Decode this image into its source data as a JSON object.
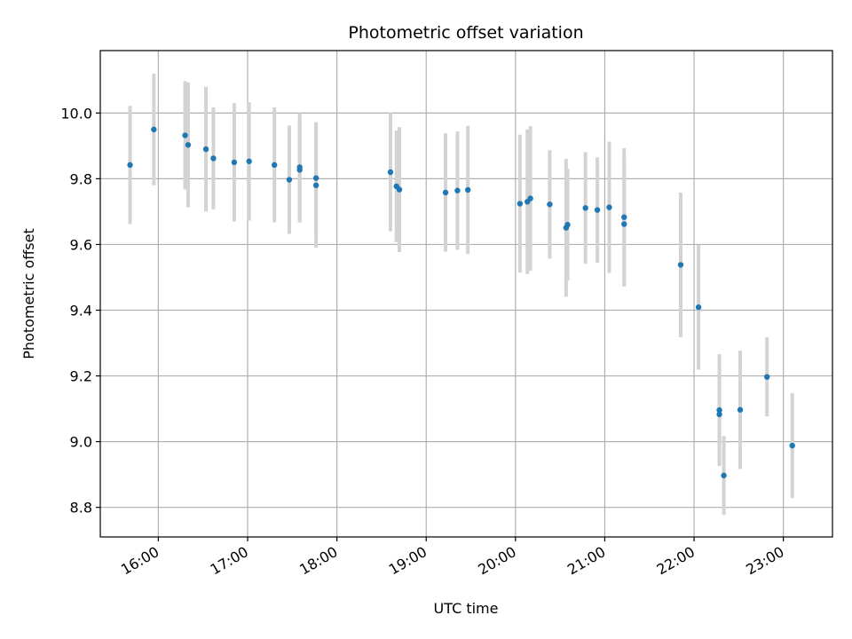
{
  "chart_data": {
    "type": "scatter",
    "title": "Photometric offset variation",
    "xlabel": "UTC time",
    "ylabel": "Photometric offset",
    "x_tick_labels": [
      "16:00",
      "17:00",
      "18:00",
      "19:00",
      "20:00",
      "21:00",
      "22:00",
      "23:00"
    ],
    "y_tick_labels": [
      "8.8",
      "9.0",
      "9.2",
      "9.4",
      "9.6",
      "9.8",
      "10.0"
    ],
    "y_ticks": [
      8.8,
      9.0,
      9.2,
      9.4,
      9.6,
      9.8,
      10.0
    ],
    "xlim": [
      "15:21",
      "23:33"
    ],
    "ylim": [
      8.71,
      10.19
    ],
    "grid": true,
    "colors": {
      "points": "#1f77b4",
      "error_bars": "#d3d3d3",
      "grid": "#b0b0b0",
      "axes": "#000000"
    },
    "series": [
      {
        "points": [
          {
            "x": "15:41",
            "y": 9.842,
            "err": 0.18
          },
          {
            "x": "15:57",
            "y": 9.95,
            "err": 0.17
          },
          {
            "x": "16:18",
            "y": 9.932,
            "err": 0.165
          },
          {
            "x": "16:20",
            "y": 9.903,
            "err": 0.19
          },
          {
            "x": "16:32",
            "y": 9.89,
            "err": 0.19
          },
          {
            "x": "16:37",
            "y": 9.862,
            "err": 0.155
          },
          {
            "x": "16:51",
            "y": 9.85,
            "err": 0.18
          },
          {
            "x": "17:01",
            "y": 9.853,
            "err": 0.18
          },
          {
            "x": "17:18",
            "y": 9.842,
            "err": 0.175
          },
          {
            "x": "17:28",
            "y": 9.797,
            "err": 0.165
          },
          {
            "x": "17:35",
            "y": 9.835,
            "err": 0.165
          },
          {
            "x": "17:35",
            "y": 9.827,
            "err": 0.16
          },
          {
            "x": "17:46",
            "y": 9.802,
            "err": 0.17
          },
          {
            "x": "17:46",
            "y": 9.78,
            "err": 0.19
          },
          {
            "x": "18:36",
            "y": 9.82,
            "err": 0.18
          },
          {
            "x": "18:40",
            "y": 9.777,
            "err": 0.17
          },
          {
            "x": "18:42",
            "y": 9.767,
            "err": 0.19
          },
          {
            "x": "19:13",
            "y": 9.758,
            "err": 0.18
          },
          {
            "x": "19:21",
            "y": 9.764,
            "err": 0.18
          },
          {
            "x": "19:28",
            "y": 9.766,
            "err": 0.195
          },
          {
            "x": "20:03",
            "y": 9.724,
            "err": 0.21
          },
          {
            "x": "20:08",
            "y": 9.73,
            "err": 0.22
          },
          {
            "x": "20:10",
            "y": 9.74,
            "err": 0.22
          },
          {
            "x": "20:23",
            "y": 9.722,
            "err": 0.165
          },
          {
            "x": "20:34",
            "y": 9.651,
            "err": 0.21
          },
          {
            "x": "20:35",
            "y": 9.66,
            "err": 0.17
          },
          {
            "x": "20:47",
            "y": 9.711,
            "err": 0.17
          },
          {
            "x": "20:55",
            "y": 9.705,
            "err": 0.16
          },
          {
            "x": "21:03",
            "y": 9.713,
            "err": 0.2
          },
          {
            "x": "21:13",
            "y": 9.683,
            "err": 0.21
          },
          {
            "x": "21:13",
            "y": 9.662,
            "err": 0.19
          },
          {
            "x": "21:51",
            "y": 9.538,
            "err": 0.22
          },
          {
            "x": "22:03",
            "y": 9.409,
            "err": 0.19
          },
          {
            "x": "22:17",
            "y": 9.096,
            "err": 0.17
          },
          {
            "x": "22:17",
            "y": 9.083,
            "err": 0.15
          },
          {
            "x": "22:20",
            "y": 8.897,
            "err": 0.12
          },
          {
            "x": "22:31",
            "y": 9.097,
            "err": 0.18
          },
          {
            "x": "22:49",
            "y": 9.197,
            "err": 0.12
          },
          {
            "x": "23:06",
            "y": 8.988,
            "err": 0.16
          }
        ]
      }
    ]
  }
}
